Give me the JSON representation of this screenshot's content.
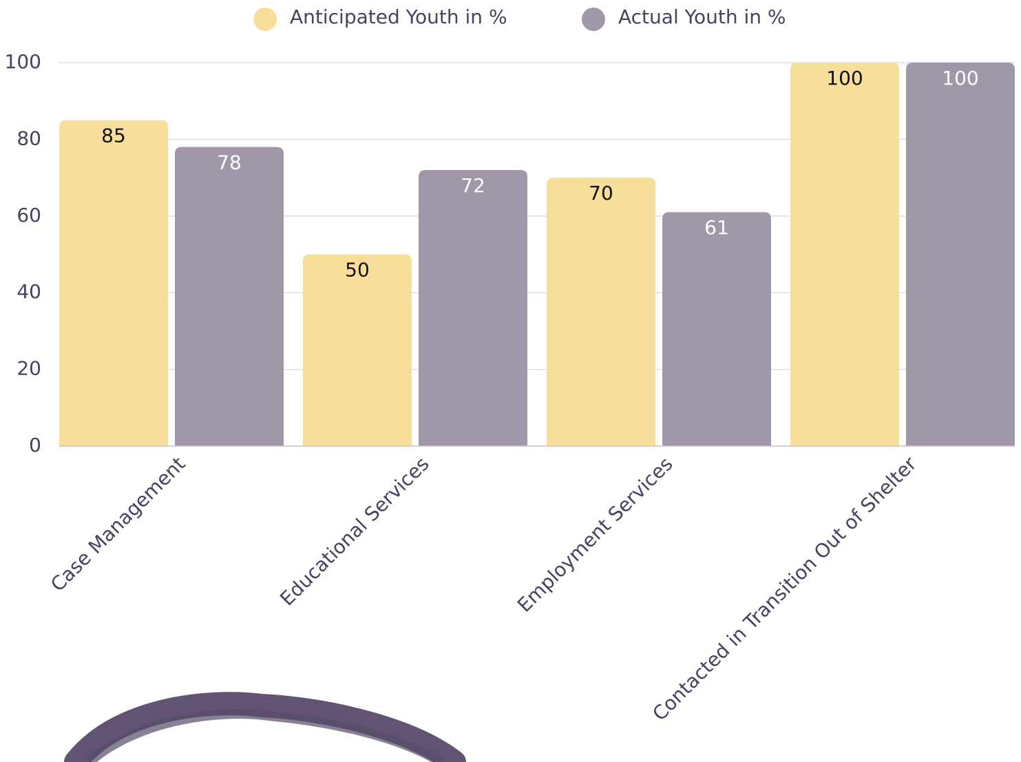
{
  "chart_data": {
    "type": "bar",
    "categories": [
      "Case Management",
      "Educational Services",
      "Employment Services",
      "Contacted in Transition Out of Shelter"
    ],
    "series": [
      {
        "name": "Anticipated Youth in %",
        "color": "#f7df9b",
        "label_color": "#111111",
        "values": [
          85,
          50,
          70,
          100
        ]
      },
      {
        "name": "Actual Youth in %",
        "color": "#a098a8",
        "label_color": "#ffffff",
        "values": [
          78,
          72,
          61,
          100
        ]
      }
    ],
    "ylim": [
      0,
      100
    ],
    "yticks": [
      0,
      20,
      40,
      60,
      80,
      100
    ],
    "grid": true,
    "legend": "top"
  }
}
